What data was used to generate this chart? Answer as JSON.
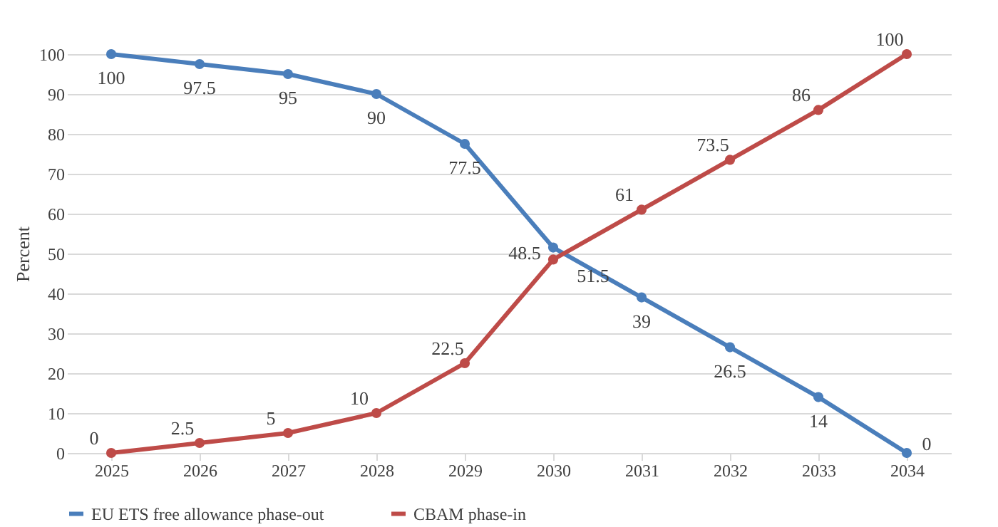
{
  "chart_data": {
    "type": "line",
    "ylabel": "Percent",
    "categories": [
      "2025",
      "2026",
      "2027",
      "2028",
      "2029",
      "2030",
      "2031",
      "2032",
      "2033",
      "2034"
    ],
    "series": [
      {
        "name": "EU ETS free allowance phase-out",
        "color": "#4a7ebb",
        "values": [
          100,
          97.5,
          95,
          90,
          77.5,
          51.5,
          39,
          26.5,
          14,
          0
        ]
      },
      {
        "name": "CBAM phase-in",
        "color": "#be4b48",
        "values": [
          0,
          2.5,
          5,
          10,
          22.5,
          48.5,
          61,
          73.5,
          86,
          100
        ]
      }
    ],
    "ylim": [
      0,
      100
    ],
    "yticks": [
      0,
      10,
      20,
      30,
      40,
      50,
      60,
      70,
      80,
      90,
      100
    ],
    "grid": "y",
    "legend": "bottom",
    "marker": "circle",
    "line_style": "solid",
    "data_labels": true
  }
}
